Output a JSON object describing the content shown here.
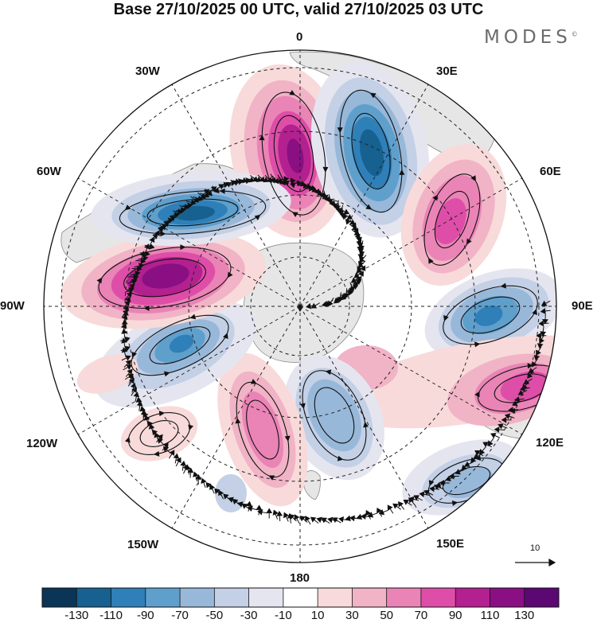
{
  "title": "Base 27/10/2025 00 UTC, valid 27/10/2025 03 UTC",
  "brand": "MODES",
  "brand_mark": "©",
  "longitude_labels": {
    "lon_0": "0",
    "lon_30e": "30E",
    "lon_60e": "60E",
    "lon_90e": "90E",
    "lon_120e": "120E",
    "lon_150e": "150E",
    "lon_180": "180",
    "lon_150w": "150W",
    "lon_120w": "120W",
    "lon_90w": "90W",
    "lon_60w": "60W",
    "lon_30w": "30W"
  },
  "reference_vector": {
    "value": "10"
  },
  "colorbar": {
    "colors": [
      "#0a3556",
      "#16618f",
      "#2f7fb8",
      "#5f9fcc",
      "#98b8d9",
      "#c3d0e6",
      "#e5e5f0",
      "#ffffff",
      "#f8dada",
      "#f1b3c6",
      "#ea84b6",
      "#de4ea8",
      "#b3208f",
      "#8a0f82",
      "#5b0873"
    ],
    "labels": [
      "-130",
      "-110",
      "-90",
      "-70",
      "-50",
      "-30",
      "-10",
      "10",
      "30",
      "50",
      "70",
      "90",
      "110",
      "130"
    ]
  },
  "anomaly_centers": [
    {
      "name": "positive-anomaly-n-0e",
      "value": 120
    },
    {
      "name": "negative-anomaly-n-25e",
      "value": -110
    },
    {
      "name": "positive-anomaly-50e",
      "value": 90
    },
    {
      "name": "negative-anomaly-90e",
      "value": -90
    },
    {
      "name": "positive-anomaly-115e",
      "value": 80
    },
    {
      "name": "negative-anomaly-140e",
      "value": -50
    },
    {
      "name": "negative-anomaly-170e",
      "value": -50
    },
    {
      "name": "positive-anomaly-165w",
      "value": 70
    },
    {
      "name": "negative-anomaly-120w",
      "value": -80
    },
    {
      "name": "positive-anomaly-80w",
      "value": 120
    },
    {
      "name": "negative-anomaly-60w",
      "value": -110
    },
    {
      "name": "positive-anomaly-130w",
      "value": 30
    }
  ]
}
